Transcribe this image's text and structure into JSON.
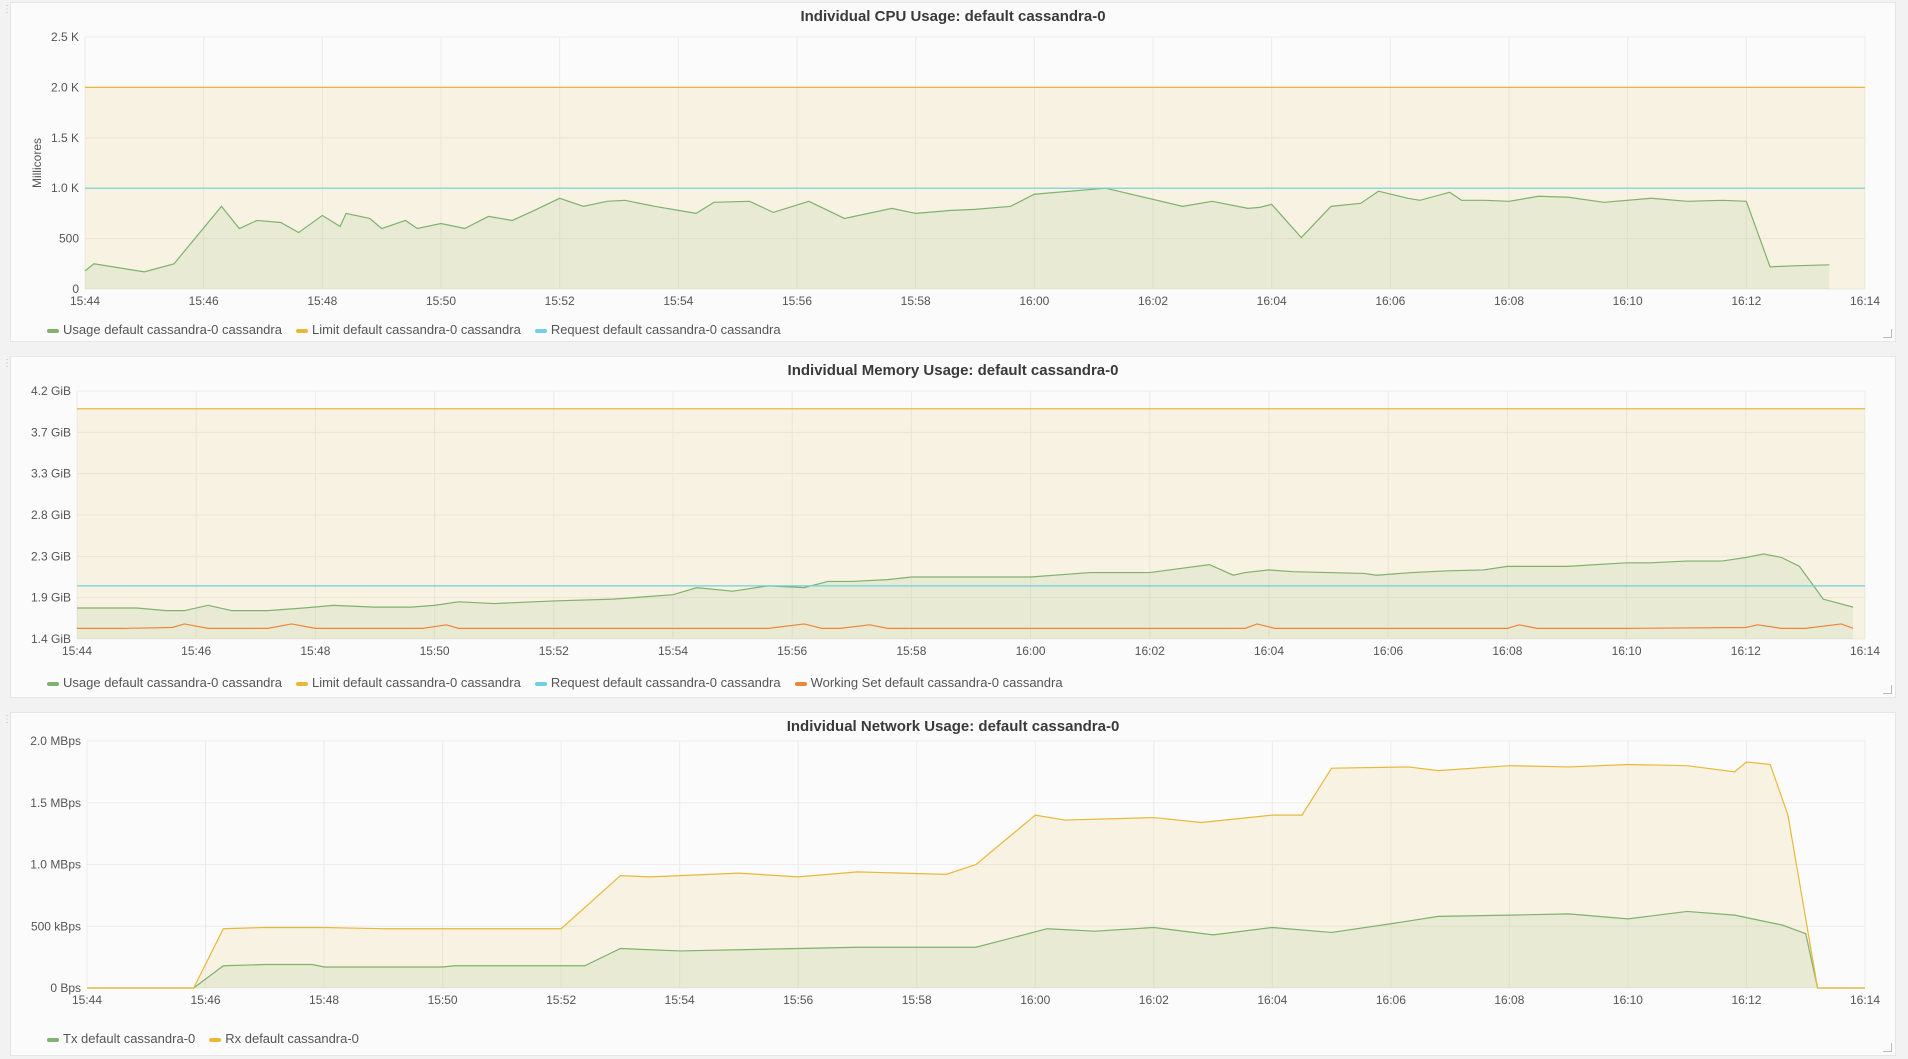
{
  "chart_data": [
    {
      "type": "area",
      "title": "Individual CPU Usage: default cassandra-0",
      "ylabel": "Millicores",
      "ylim": [
        0,
        2500
      ],
      "yticks": [
        "0",
        "500",
        "1.0 K",
        "1.5 K",
        "2.0 K",
        "2.5 K"
      ],
      "xticks": [
        "15:44",
        "15:46",
        "15:48",
        "15:50",
        "15:52",
        "15:54",
        "15:56",
        "15:58",
        "16:00",
        "16:02",
        "16:04",
        "16:06",
        "16:08",
        "16:10",
        "16:12",
        "16:14"
      ],
      "xrange_minutes": [
        0,
        30
      ],
      "series": [
        {
          "name": "Usage default cassandra-0 cassandra",
          "color": "#7eb26d",
          "fill": true,
          "x": [
            0,
            0.15,
            1,
            1.5,
            2.3,
            2.6,
            2.9,
            3.3,
            3.6,
            4.0,
            4.3,
            4.4,
            4.8,
            5.0,
            5.4,
            5.6,
            6.0,
            6.4,
            6.8,
            7.2,
            7.5,
            8.0,
            8.4,
            8.8,
            9.1,
            9.6,
            10.0,
            10.3,
            10.6,
            11.2,
            11.6,
            12.2,
            12.8,
            13.6,
            14.0,
            14.6,
            15.0,
            15.6,
            16.0,
            17.2,
            18.5,
            19.0,
            19.6,
            19.8,
            20.0,
            20.5,
            21.0,
            21.5,
            21.8,
            22.3,
            22.5,
            23.0,
            23.2,
            23.6,
            24.0,
            24.5,
            25.0,
            25.6,
            26.4,
            27.0,
            27.6,
            28.0,
            28.4,
            28.8,
            29.4
          ],
          "y": [
            180,
            250,
            170,
            250,
            820,
            600,
            680,
            660,
            560,
            730,
            620,
            750,
            700,
            600,
            680,
            600,
            650,
            600,
            720,
            680,
            760,
            900,
            820,
            870,
            880,
            820,
            780,
            750,
            860,
            870,
            760,
            870,
            700,
            800,
            750,
            780,
            790,
            820,
            940,
            1000,
            820,
            870,
            800,
            810,
            840,
            510,
            820,
            850,
            970,
            900,
            880,
            960,
            880,
            880,
            870,
            920,
            910,
            860,
            900,
            870,
            880,
            870,
            220,
            230,
            240
          ]
        },
        {
          "name": "Limit default cassandra-0 cassandra",
          "color": "#eab839",
          "fill": true,
          "x": [
            0,
            30
          ],
          "y": [
            2000,
            2000
          ]
        },
        {
          "name": "Request default cassandra-0 cassandra",
          "color": "#6ed0e0",
          "fill": false,
          "x": [
            0,
            30
          ],
          "y": [
            1000,
            1000
          ]
        }
      ]
    },
    {
      "type": "area",
      "title": "Individual Memory Usage: default cassandra-0",
      "ylabel": "",
      "ylim": [
        1.4,
        4.2
      ],
      "yticks": [
        "1.4 GiB",
        "1.9 GiB",
        "2.3 GiB",
        "2.8 GiB",
        "3.3 GiB",
        "3.7 GiB",
        "4.2 GiB"
      ],
      "xticks": [
        "15:44",
        "15:46",
        "15:48",
        "15:50",
        "15:52",
        "15:54",
        "15:56",
        "15:58",
        "16:00",
        "16:02",
        "16:04",
        "16:06",
        "16:08",
        "16:10",
        "16:12",
        "16:14"
      ],
      "xrange_minutes": [
        0,
        30
      ],
      "series": [
        {
          "name": "Usage default cassandra-0 cassandra",
          "color": "#7eb26d",
          "fill": true,
          "x": [
            0,
            0.4,
            1,
            1.5,
            1.8,
            2.2,
            2.6,
            3.2,
            3.8,
            4.3,
            5.0,
            5.6,
            6.0,
            6.4,
            7.0,
            8.0,
            9.0,
            10.0,
            10.4,
            11.0,
            11.6,
            12.2,
            12.6,
            13.0,
            13.6,
            14.0,
            14.6,
            15.0,
            16.0,
            17.0,
            18.0,
            19.0,
            19.4,
            19.6,
            20.0,
            20.4,
            21.0,
            21.6,
            21.8,
            22.4,
            23.0,
            23.6,
            24.0,
            25.0,
            26.0,
            26.4,
            27.0,
            27.6,
            28.0,
            28.3,
            28.6,
            28.9,
            29.3,
            29.8
          ],
          "y": [
            1.75,
            1.75,
            1.75,
            1.72,
            1.72,
            1.78,
            1.72,
            1.72,
            1.75,
            1.78,
            1.76,
            1.76,
            1.78,
            1.82,
            1.8,
            1.83,
            1.85,
            1.9,
            1.98,
            1.94,
            2.0,
            1.98,
            2.05,
            2.05,
            2.07,
            2.1,
            2.1,
            2.1,
            2.1,
            2.15,
            2.15,
            2.24,
            2.12,
            2.15,
            2.18,
            2.16,
            2.15,
            2.14,
            2.12,
            2.15,
            2.17,
            2.18,
            2.22,
            2.22,
            2.26,
            2.26,
            2.28,
            2.28,
            2.32,
            2.36,
            2.32,
            2.22,
            1.85,
            1.76
          ]
        },
        {
          "name": "Limit default cassandra-0 cassandra",
          "color": "#eab839",
          "fill": true,
          "x": [
            0,
            30
          ],
          "y": [
            4.0,
            4.0
          ]
        },
        {
          "name": "Request default cassandra-0 cassandra",
          "color": "#6ed0e0",
          "fill": false,
          "x": [
            0,
            30
          ],
          "y": [
            2.0,
            2.0
          ]
        },
        {
          "name": "Working Set default cassandra-0 cassandra",
          "color": "#ef843c",
          "fill": false,
          "x": [
            0,
            0.3,
            0.8,
            1.6,
            1.8,
            2.2,
            2.8,
            3.2,
            3.6,
            4.0,
            5.8,
            6.2,
            6.4,
            11.6,
            12.2,
            12.5,
            12.8,
            13.3,
            13.6,
            14.0,
            15.0,
            16.0,
            17.0,
            18.0,
            19.6,
            19.8,
            20.1,
            20.4,
            21.0,
            22.0,
            23.0,
            24.0,
            24.2,
            24.5,
            26.0,
            28.0,
            28.2,
            28.6,
            29.0,
            29.6,
            29.8
          ],
          "y": [
            1.52,
            1.52,
            1.52,
            1.53,
            1.57,
            1.52,
            1.52,
            1.52,
            1.57,
            1.52,
            1.52,
            1.56,
            1.52,
            1.52,
            1.57,
            1.52,
            1.52,
            1.56,
            1.52,
            1.52,
            1.52,
            1.52,
            1.52,
            1.52,
            1.52,
            1.57,
            1.52,
            1.52,
            1.52,
            1.52,
            1.52,
            1.52,
            1.56,
            1.52,
            1.52,
            1.53,
            1.56,
            1.52,
            1.52,
            1.57,
            1.52
          ]
        }
      ]
    },
    {
      "type": "area",
      "title": "Individual Network Usage: default cassandra-0",
      "ylabel": "",
      "ylim": [
        0,
        2000
      ],
      "yticks": [
        "0 Bps",
        "500 kBps",
        "1.0 MBps",
        "1.5 MBps",
        "2.0 MBps"
      ],
      "xticks": [
        "15:44",
        "15:46",
        "15:48",
        "15:50",
        "15:52",
        "15:54",
        "15:56",
        "15:58",
        "16:00",
        "16:02",
        "16:04",
        "16:06",
        "16:08",
        "16:10",
        "16:12",
        "16:14"
      ],
      "xrange_minutes": [
        0,
        30
      ],
      "series": [
        {
          "name": "Tx default cassandra-0",
          "color": "#7eb26d",
          "fill": true,
          "x": [
            0,
            1.8,
            2.3,
            3.0,
            3.8,
            4.0,
            6.0,
            6.2,
            8.0,
            8.4,
            9.0,
            10.0,
            12.0,
            13.0,
            15.0,
            16.2,
            17.0,
            18.0,
            19.0,
            20.0,
            21.0,
            22.0,
            22.8,
            24.0,
            25.0,
            26.0,
            27.0,
            27.8,
            28.0,
            28.6,
            29.0,
            29.2,
            29.6,
            30.0
          ],
          "y": [
            0,
            0,
            180,
            190,
            190,
            170,
            170,
            180,
            180,
            180,
            320,
            300,
            320,
            330,
            330,
            480,
            460,
            490,
            430,
            490,
            450,
            520,
            580,
            590,
            600,
            560,
            620,
            590,
            570,
            510,
            440,
            0,
            0,
            0
          ]
        },
        {
          "name": "Rx default cassandra-0",
          "color": "#eab839",
          "fill": true,
          "x": [
            0,
            1.8,
            2.3,
            3.0,
            4.0,
            5.0,
            6.0,
            8.0,
            9.0,
            9.5,
            10.0,
            11.0,
            12.0,
            13.0,
            14.5,
            15.0,
            16.0,
            16.5,
            18.0,
            18.8,
            20.0,
            20.5,
            21.0,
            22.3,
            22.8,
            24.0,
            25.0,
            26.0,
            27.0,
            27.8,
            28.0,
            28.4,
            28.7,
            29.2,
            29.6,
            30.0
          ],
          "y": [
            0,
            0,
            480,
            490,
            490,
            480,
            480,
            480,
            910,
            900,
            910,
            930,
            900,
            940,
            920,
            1000,
            1400,
            1360,
            1380,
            1340,
            1400,
            1400,
            1780,
            1790,
            1760,
            1800,
            1790,
            1810,
            1800,
            1750,
            1830,
            1810,
            1400,
            0,
            0,
            0
          ]
        }
      ]
    }
  ]
}
